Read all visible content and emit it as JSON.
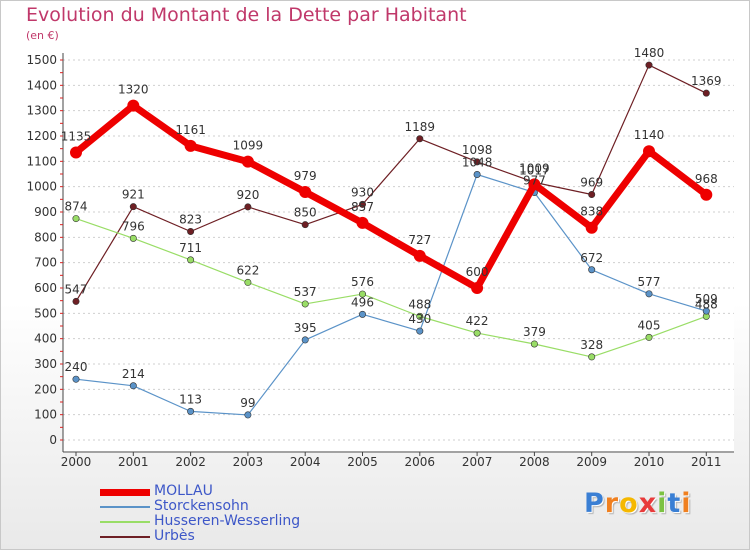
{
  "chart_data": {
    "type": "line",
    "title": "Evolution du Montant de la Dette par Habitant",
    "subtitle": "(en €)",
    "x": [
      "2000",
      "2001",
      "2002",
      "2003",
      "2004",
      "2005",
      "2006",
      "2007",
      "2008",
      "2009",
      "2010",
      "2011"
    ],
    "ylim": [
      0,
      1500
    ],
    "yticks": [
      0,
      100,
      200,
      300,
      400,
      500,
      600,
      700,
      800,
      900,
      1000,
      1100,
      1200,
      1300,
      1400,
      1500
    ],
    "grid": true,
    "legend_position": "bottom-left",
    "series": [
      {
        "name": "MOLLAU",
        "color": "#ee0000",
        "values": [
          1135,
          1320,
          1161,
          1099,
          979,
          857,
          727,
          600,
          1009,
          838,
          1140,
          968
        ]
      },
      {
        "name": "Storckensohn",
        "color": "#5b93c8",
        "values": [
          240,
          214,
          113,
          99,
          395,
          496,
          430,
          1048,
          977,
          672,
          577,
          509
        ]
      },
      {
        "name": "Husseren-Wesserling",
        "color": "#99dd66",
        "values": [
          874,
          796,
          711,
          622,
          537,
          576,
          488,
          422,
          379,
          328,
          405,
          488
        ]
      },
      {
        "name": "Urbès",
        "color": "#6e1f24",
        "values": [
          547,
          921,
          823,
          920,
          850,
          930,
          1189,
          1098,
          1017,
          969,
          1480,
          1369
        ]
      }
    ],
    "point_labels": [
      [
        "1135",
        "1320",
        "1161",
        "1099",
        "979",
        "857",
        "727",
        "600",
        "1009",
        "838",
        "1140",
        "968"
      ],
      [
        "240",
        "214",
        "113",
        "99",
        "395",
        "496",
        "430",
        "1048",
        "977",
        "672",
        "577",
        "509"
      ],
      [
        "874",
        "796",
        "711",
        "622",
        "537",
        "576",
        "488",
        "422",
        "379",
        "328",
        "405",
        "488"
      ],
      [
        "547",
        "921",
        "823",
        "920",
        "850",
        "930",
        "1189",
        "1098",
        "1017",
        "969",
        "1480",
        "1369"
      ]
    ]
  },
  "logo": {
    "letters": [
      "P",
      "r",
      "o",
      "x",
      "i",
      "t",
      "i"
    ],
    "colors": [
      "#3a7fd4",
      "#f08020",
      "#f5b800",
      "#e83a3a",
      "#7cc242",
      "#3a7fd4",
      "#f08020"
    ]
  }
}
